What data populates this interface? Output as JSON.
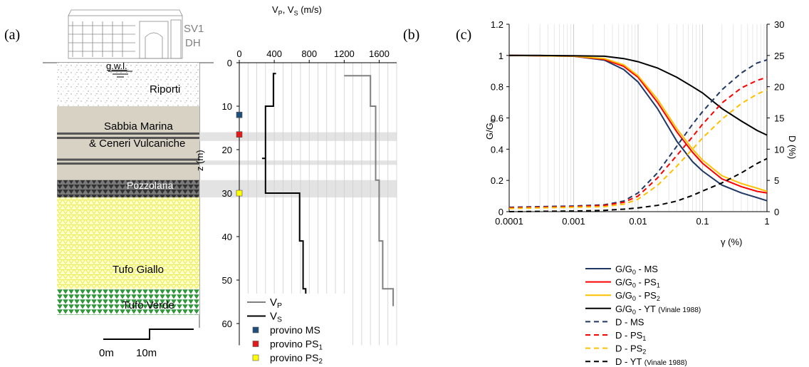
{
  "panel_labels": {
    "a": "(a)",
    "b": "(b)",
    "c": "(c)"
  },
  "borehole": {
    "id_line1": "SV1",
    "id_line2": "DH",
    "gwl": "g.w.l.",
    "scale_start": "0m",
    "scale_end": "10m",
    "layers": [
      {
        "name": "Riporti",
        "top": 0,
        "bottom": 10
      },
      {
        "name_line1": "Sabbia Marina",
        "name_line2": "& Ceneri Vulcaniche",
        "top": 10,
        "bottom": 27
      },
      {
        "name": "Pozzolana",
        "top": 27,
        "bottom": 31
      },
      {
        "name": "Tufo Giallo",
        "top": 31,
        "bottom": 52
      },
      {
        "name": "Tufo Verde",
        "top": 52,
        "bottom": 58
      }
    ]
  },
  "chart_data": [
    {
      "type": "line",
      "title": "VP, VS (m/s)",
      "title_parts": {
        "v1": "V",
        "s1": "P",
        "sep": ", V",
        "s2": "S",
        "unit": " (m/s)"
      },
      "xlabel": "",
      "ylabel": "z (m)",
      "xlim": [
        0,
        1800
      ],
      "ylim": [
        0,
        65
      ],
      "y_inverted": true,
      "x_axis_position": "top",
      "xticks": [
        "0",
        "400",
        "800",
        "1200",
        "1600"
      ],
      "xtick_values": [
        0,
        400,
        800,
        1200,
        1600
      ],
      "yticks": [
        "0",
        "10",
        "20",
        "30",
        "40",
        "50",
        "60"
      ],
      "ytick_values": [
        0,
        10,
        20,
        30,
        40,
        50,
        60
      ],
      "grid": true,
      "shaded_depth_bands": [
        [
          16,
          18
        ],
        [
          22.5,
          23.5
        ],
        [
          27,
          31
        ]
      ],
      "series": [
        {
          "name": "VP",
          "color": "#808080",
          "x": [
            1200,
            1500,
            1500,
            1560,
            1560,
            1600,
            1600,
            1640,
            1640,
            1660,
            1660,
            1760,
            1760
          ],
          "y": [
            3,
            3,
            10,
            10,
            27,
            27,
            41,
            41,
            52,
            52,
            52,
            52,
            56
          ]
        },
        {
          "name": "VS",
          "color": "#000000",
          "x": [
            420,
            390,
            390,
            300,
            300,
            260,
            260,
            300,
            300,
            440,
            440,
            690,
            690,
            730,
            730,
            760,
            760
          ],
          "y": [
            2.5,
            2.5,
            10,
            10,
            22,
            22,
            22,
            22,
            30,
            30,
            30,
            30,
            41,
            41,
            52,
            52,
            56
          ]
        }
      ],
      "specimens": [
        {
          "label": "provino MS",
          "depth": 12,
          "color": "#1f4e79"
        },
        {
          "label": "provino PS1",
          "depth": 16.5,
          "color": "#e31a1c"
        },
        {
          "label": "provino PS2",
          "depth": 30,
          "color": "#ffff00"
        }
      ],
      "legend": [
        {
          "label": "VP",
          "main": "V",
          "sub": "P",
          "color": "#808080",
          "kind": "line"
        },
        {
          "label": "VS",
          "main": "V",
          "sub": "S",
          "color": "#000000",
          "kind": "line"
        },
        {
          "label": "provino MS",
          "main": "provino MS",
          "sub": "",
          "color": "#1f4e79",
          "kind": "square"
        },
        {
          "label": "provino PS1",
          "main": "provino PS",
          "sub": "1",
          "color": "#e31a1c",
          "kind": "square"
        },
        {
          "label": "provino PS2",
          "main": "provino PS",
          "sub": "2",
          "color": "#ffff00",
          "kind": "square"
        }
      ]
    },
    {
      "type": "line",
      "title": "",
      "xlabel": "γ (%)",
      "ylabel": "G/G0",
      "ylabel_parts": {
        "main": "G/G",
        "sub": "0"
      },
      "y2label": "D (%)",
      "x_scale": "log",
      "xlim": [
        0.0001,
        1
      ],
      "ylim": [
        0,
        1.2
      ],
      "y2lim": [
        0,
        30
      ],
      "xticks": [
        "0.0001",
        "0.001",
        "0.01",
        "0.1",
        "1"
      ],
      "yticks": [
        "0",
        "0.2",
        "0.4",
        "0.6",
        "0.8",
        "1",
        "1.2"
      ],
      "y2ticks": [
        "0",
        "5",
        "10",
        "15",
        "20",
        "25",
        "30"
      ],
      "grid": true,
      "legend_position": "below",
      "gamma": [
        0.0001,
        0.0003,
        0.001,
        0.003,
        0.006,
        0.01,
        0.02,
        0.04,
        0.07,
        0.1,
        0.2,
        0.4,
        0.7,
        1
      ],
      "series": [
        {
          "name": "G/G0 - MS",
          "axis": "left",
          "color": "#1f3864",
          "dash": "solid",
          "y": [
            1,
            0.998,
            0.995,
            0.97,
            0.91,
            0.83,
            0.66,
            0.45,
            0.32,
            0.26,
            0.17,
            0.12,
            0.09,
            0.07
          ]
        },
        {
          "name": "G/G0 - PS1",
          "axis": "left",
          "color": "#ff0000",
          "dash": "solid",
          "y": [
            1,
            0.998,
            0.995,
            0.975,
            0.93,
            0.86,
            0.7,
            0.51,
            0.38,
            0.31,
            0.21,
            0.16,
            0.13,
            0.12
          ]
        },
        {
          "name": "G/G0 - PS2",
          "axis": "left",
          "color": "#ffc000",
          "dash": "solid",
          "y": [
            1,
            0.998,
            0.996,
            0.98,
            0.94,
            0.87,
            0.72,
            0.53,
            0.4,
            0.33,
            0.23,
            0.18,
            0.15,
            0.13
          ]
        },
        {
          "name": "G/G0 - YT (Vinale 1988)",
          "axis": "left",
          "color": "#000000",
          "dash": "solid",
          "y": [
            1,
            1,
            0.998,
            0.995,
            0.98,
            0.96,
            0.92,
            0.86,
            0.8,
            0.76,
            0.66,
            0.58,
            0.52,
            0.49
          ]
        },
        {
          "name": "D - MS",
          "axis": "right",
          "color": "#1f3864",
          "dash": "dashed",
          "y": [
            0.7,
            0.8,
            0.9,
            1.1,
            1.7,
            3,
            6.2,
            10.5,
            14,
            16,
            19.5,
            22.2,
            23.8,
            24.3
          ]
        },
        {
          "name": "D - PS1",
          "axis": "right",
          "color": "#ff0000",
          "dash": "dashed",
          "y": [
            0.6,
            0.7,
            0.8,
            1,
            1.5,
            2.5,
            5.4,
            9,
            12,
            14,
            17.4,
            19.8,
            21,
            21.5
          ]
        },
        {
          "name": "D - PS2",
          "axis": "right",
          "color": "#ffc000",
          "dash": "dashed",
          "y": [
            0.5,
            0.6,
            0.7,
            0.8,
            1.2,
            2,
            4.2,
            7.3,
            10,
            11.8,
            14.8,
            17.3,
            18.8,
            19.5
          ]
        },
        {
          "name": "D - YT (Vinale 1988)",
          "axis": "right",
          "color": "#000000",
          "dash": "dashed",
          "y": [
            0,
            0.05,
            0.1,
            0.2,
            0.4,
            0.6,
            1,
            1.7,
            2.6,
            3.3,
            4.6,
            6.2,
            7.7,
            8.5
          ]
        }
      ],
      "legend": [
        {
          "main": "G/G",
          "sub": "0",
          "tail": " - MS",
          "note": "",
          "color": "#1f3864",
          "dash": "solid"
        },
        {
          "main": "G/G",
          "sub": "0",
          "tail": " - PS",
          "tailsub": "1",
          "note": "",
          "color": "#ff0000",
          "dash": "solid"
        },
        {
          "main": "G/G",
          "sub": "0",
          "tail": " - PS",
          "tailsub": "2",
          "note": "",
          "color": "#ffc000",
          "dash": "solid"
        },
        {
          "main": "G/G",
          "sub": "0",
          "tail": " - YT ",
          "note": "(Vinale 1988)",
          "color": "#000000",
          "dash": "solid"
        },
        {
          "main": "D - MS",
          "sub": "",
          "tail": "",
          "note": "",
          "color": "#1f3864",
          "dash": "dashed"
        },
        {
          "main": "D - PS",
          "sub": "1",
          "tail": "",
          "note": "",
          "color": "#ff0000",
          "dash": "dashed"
        },
        {
          "main": "D - PS",
          "sub": "2",
          "tail": "",
          "note": "",
          "color": "#ffc000",
          "dash": "dashed"
        },
        {
          "main": "D - YT ",
          "sub": "",
          "tail": "",
          "note": "(Vinale 1988)",
          "color": "#000000",
          "dash": "dashed"
        }
      ]
    }
  ]
}
